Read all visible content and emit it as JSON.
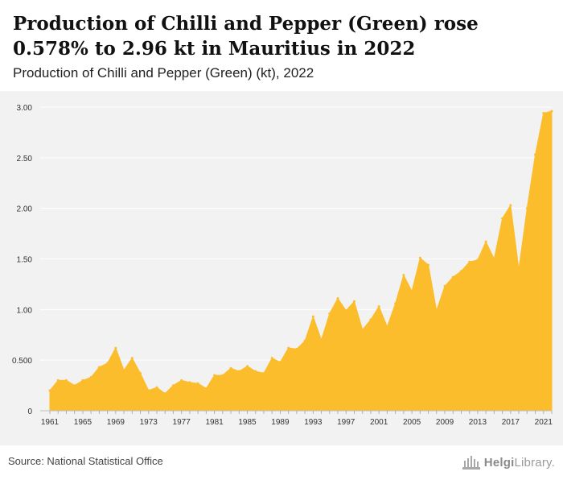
{
  "header": {
    "title": "Production of Chilli and Pepper (Green) rose 0.578% to 2.96 kt in Mauritius in 2022",
    "subtitle": "Production of Chilli and Pepper (Green) (kt), 2022"
  },
  "footer": {
    "source": "Source: National Statistical Office",
    "brand_bold": "Helgi",
    "brand_rest": "Library."
  },
  "colors": {
    "area_fill": "#fbbd2c",
    "plot_background": "#f2f2f2",
    "grid": "#ffffff",
    "tick_text": "#333333"
  },
  "chart_data": {
    "type": "area",
    "x": [
      1961,
      1962,
      1963,
      1964,
      1965,
      1966,
      1967,
      1968,
      1969,
      1970,
      1971,
      1972,
      1973,
      1974,
      1975,
      1976,
      1977,
      1978,
      1979,
      1980,
      1981,
      1982,
      1983,
      1984,
      1985,
      1986,
      1987,
      1988,
      1989,
      1990,
      1991,
      1992,
      1993,
      1994,
      1995,
      1996,
      1997,
      1998,
      1999,
      2000,
      2001,
      2002,
      2003,
      2004,
      2005,
      2006,
      2007,
      2008,
      2009,
      2010,
      2011,
      2012,
      2013,
      2014,
      2015,
      2016,
      2017,
      2018,
      2019,
      2020,
      2021,
      2022
    ],
    "series": [
      {
        "values": [
          0.2,
          0.3,
          0.3,
          0.25,
          0.3,
          0.33,
          0.43,
          0.47,
          0.62,
          0.4,
          0.52,
          0.37,
          0.2,
          0.23,
          0.17,
          0.25,
          0.3,
          0.28,
          0.27,
          0.22,
          0.35,
          0.35,
          0.42,
          0.39,
          0.44,
          0.39,
          0.37,
          0.52,
          0.48,
          0.62,
          0.61,
          0.69,
          0.93,
          0.7,
          0.96,
          1.11,
          0.99,
          1.08,
          0.8,
          0.9,
          1.03,
          0.83,
          1.06,
          1.34,
          1.18,
          1.51,
          1.44,
          0.99,
          1.23,
          1.32,
          1.38,
          1.47,
          1.49,
          1.67,
          1.5,
          1.9,
          2.03,
          1.4,
          2.0,
          2.53,
          2.94,
          2.96
        ]
      }
    ],
    "yticks": [
      0,
      0.5,
      1.0,
      1.5,
      2.0,
      2.5,
      3.0
    ],
    "ytick_labels": [
      "0",
      "0.500",
      "1.00",
      "1.50",
      "2.00",
      "2.50",
      "3.00"
    ],
    "xtick_labels": [
      "1961",
      "1965",
      "1969",
      "1973",
      "1977",
      "1981",
      "1985",
      "1989",
      "1993",
      "1997",
      "2001",
      "2005",
      "2009",
      "2013",
      "2017",
      "2021"
    ],
    "ylim": [
      0,
      3.0
    ],
    "grid": true,
    "title": "Production of Chilli and Pepper (Green) rose 0.578% to 2.96 kt in Mauritius in 2022",
    "subtitle": "Production of Chilli and Pepper (Green) (kt), 2022",
    "xlabel": "",
    "ylabel": ""
  }
}
